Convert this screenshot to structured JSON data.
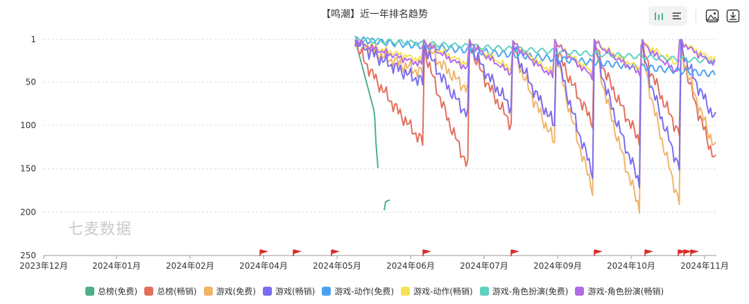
{
  "title": "【鸣潮】近一年排名趋势",
  "toolbar": {
    "bar_icon": "bar-chart-icon",
    "list_icon": "list-icon",
    "image_icon": "image-icon",
    "download_icon": "download-icon"
  },
  "watermark": "七麦数据",
  "chart_data": {
    "type": "line",
    "y_inverted": true,
    "ylim": [
      1,
      250
    ],
    "y_ticks": [
      1,
      50,
      100,
      150,
      200,
      250
    ],
    "x_tick_labels": [
      "2023年12月",
      "2024年01月",
      "2024年02月",
      "2024年04月",
      "2024年05月",
      "2024年06月",
      "2024年07月",
      "2024年09月",
      "2024年10月",
      "2024年11月"
    ],
    "grid": true,
    "legend_position": "bottom",
    "series": [
      {
        "name": "总榜(免费)",
        "color": "#4caf8a"
      },
      {
        "name": "总榜(畅销)",
        "color": "#e26f5e"
      },
      {
        "name": "游戏(免费)",
        "color": "#f0b469"
      },
      {
        "name": "游戏(畅销)",
        "color": "#7b6df0"
      },
      {
        "name": "游戏-动作(免费)",
        "color": "#4aa3ef"
      },
      {
        "name": "游戏-动作(畅销)",
        "color": "#f6e156"
      },
      {
        "name": "游戏-角色扮演(免费)",
        "color": "#5ed1bf"
      },
      {
        "name": "游戏-角色扮演(畅销)",
        "color": "#b36ae8"
      }
    ],
    "event_marker_color": "#d92c2c"
  }
}
